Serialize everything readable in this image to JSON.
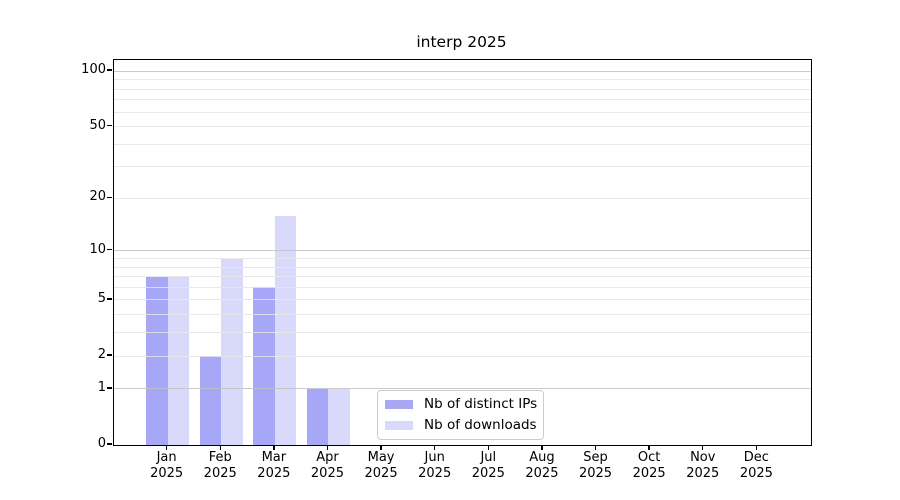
{
  "chart_data": {
    "type": "bar",
    "title": "interp 2025",
    "year": "2025",
    "categories": [
      "Jan",
      "Feb",
      "Mar",
      "Apr",
      "May",
      "Jun",
      "Jul",
      "Aug",
      "Sep",
      "Oct",
      "Nov",
      "Dec"
    ],
    "series": [
      {
        "name": "Nb of distinct IPs",
        "color": "rgba(137,137,245,0.75)",
        "values": [
          7,
          2,
          6,
          1,
          0,
          0,
          0,
          0,
          0,
          0,
          0,
          0
        ]
      },
      {
        "name": "Nb of downloads",
        "color": "rgba(204,204,250,0.75)",
        "values": [
          7,
          9,
          16,
          1,
          0,
          0,
          0,
          0,
          0,
          0,
          0,
          0
        ]
      }
    ],
    "y_axis": {
      "scale": "log1p",
      "tick_values": [
        0,
        1,
        2,
        5,
        10,
        20,
        50,
        100
      ],
      "tick_labels": [
        "0",
        "1",
        "2",
        "5",
        "10",
        "20",
        "50",
        "100"
      ],
      "major_gridlines": [
        1,
        10,
        100
      ],
      "minor_gridlines": [
        2,
        3,
        4,
        5,
        6,
        7,
        8,
        9,
        20,
        30,
        40,
        50,
        60,
        70,
        80,
        90
      ],
      "ylim": [
        0,
        115
      ]
    },
    "legend": {
      "position": "lower-center-inside"
    },
    "colors": {
      "spine": "#000000",
      "major_grid": "#c1c1c1",
      "minor_grid": "#e5e5e5",
      "background": "#ffffff",
      "text": "#000000",
      "legend_border": "#cccccc"
    }
  }
}
